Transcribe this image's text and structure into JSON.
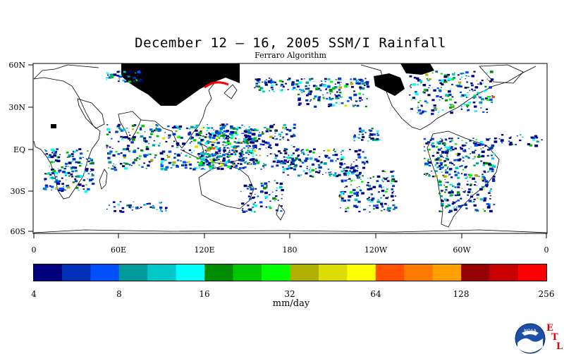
{
  "title": "December 12 – 16, 2005 SSM/I Rainfall",
  "subtitle": "Ferraro Algorithm",
  "lat_labels": [
    "60N",
    "30N",
    "EQ",
    "30S",
    "60S"
  ],
  "lon_labels": [
    "0",
    "60E",
    "120E",
    "180",
    "120W",
    "60W",
    "0"
  ],
  "colorbar": {
    "colors": [
      "#00007f",
      "#0030b8",
      "#0050ff",
      "#009a9a",
      "#00c8c8",
      "#00ffff",
      "#008c00",
      "#00c800",
      "#00ff00",
      "#b0b000",
      "#dcdc00",
      "#ffff00",
      "#ff5000",
      "#ff7800",
      "#ffa000",
      "#960000",
      "#c80000",
      "#ff0000"
    ],
    "tick_labels": [
      "4",
      "8",
      "16",
      "32",
      "64",
      "128",
      "256"
    ],
    "unit": "mm/day"
  },
  "legend_colors_on_map": {
    "no_data": "#000000",
    "coast": "#000000"
  },
  "logo": {
    "name": "NOAA",
    "text": "NOAA",
    "letters": [
      "E",
      "T",
      "L"
    ]
  }
}
